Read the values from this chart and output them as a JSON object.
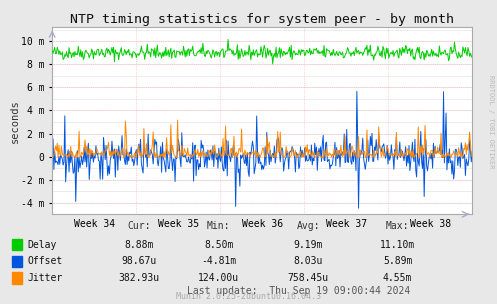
{
  "title": "NTP timing statistics for system peer - by month",
  "ylabel": "seconds",
  "background_color": "#e8e8e8",
  "plot_bg_color": "#ffffff",
  "grid_color_major": "#ffaaaa",
  "grid_color_minor": "#dddddd",
  "x_labels": [
    "Week 34",
    "Week 35",
    "Week 36",
    "Week 37",
    "Week 38"
  ],
  "y_tick_labels": [
    "-4 m",
    "-2 m",
    "0",
    "2 m",
    "4 m",
    "6 m",
    "8 m",
    "10 m"
  ],
  "y_tick_vals": [
    -4,
    -2,
    0,
    2,
    4,
    6,
    8,
    10
  ],
  "ylim": [
    -5.0,
    11.2
  ],
  "delay_color": "#00cc00",
  "offset_color": "#0055dd",
  "jitter_color": "#ff8800",
  "legend_labels": [
    "Delay",
    "Offset",
    "Jitter"
  ],
  "table_headers": [
    "Cur:",
    "Min:",
    "Avg:",
    "Max:"
  ],
  "table_data": [
    [
      "8.88m",
      "8.50m",
      "9.19m",
      "11.10m"
    ],
    [
      "98.67u",
      "-4.81m",
      "8.03u",
      "5.89m"
    ],
    [
      "382.93u",
      "124.00u",
      "758.45u",
      "4.55m"
    ]
  ],
  "last_update": "Last update:  Thu Sep 19 09:00:44 2024",
  "munin_version": "Munin 2.0.25-2ubuntu0.16.04.3",
  "rrdtool_text": "RRDTOOL / TOBI OETIKER",
  "n_points": 500,
  "delay_base": 9.0,
  "delay_noise": 0.3
}
